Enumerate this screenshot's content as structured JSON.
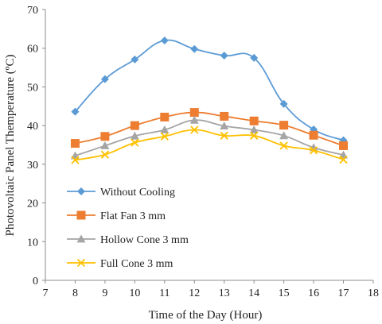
{
  "chart_data": {
    "type": "line",
    "xlabel": "Time of the Day (Hour)",
    "ylabel": "Photovoltaic Panel Themperature (ºC)",
    "xlim": [
      7,
      18
    ],
    "ylim": [
      0,
      70
    ],
    "xticks": [
      7,
      8,
      9,
      10,
      11,
      12,
      13,
      14,
      15,
      16,
      17,
      18
    ],
    "yticks": [
      0,
      10,
      20,
      30,
      40,
      50,
      60,
      70
    ],
    "grid": false,
    "legend_position": "lower-left",
    "x": [
      8,
      9,
      10,
      11,
      12,
      13,
      14,
      15,
      16,
      17
    ],
    "series": [
      {
        "name": "Without Cooling",
        "color": "#5b9bd5",
        "marker": "diamond",
        "smooth": true,
        "values": [
          43.6,
          52.0,
          57.1,
          62.0,
          59.8,
          58.1,
          57.5,
          45.6,
          39.0,
          36.2
        ]
      },
      {
        "name": "Flat Fan 3 mm",
        "color": "#ed7d31",
        "marker": "square",
        "smooth": true,
        "values": [
          35.4,
          37.2,
          40.0,
          42.2,
          43.4,
          42.4,
          41.2,
          40.1,
          37.5,
          34.8
        ]
      },
      {
        "name": "Hollow Cone 3 mm",
        "color": "#a5a5a5",
        "marker": "triangle",
        "smooth": true,
        "values": [
          32.2,
          34.8,
          37.3,
          38.9,
          41.4,
          39.9,
          38.9,
          37.4,
          34.3,
          32.4
        ]
      },
      {
        "name": "Full Cone 3 mm",
        "color": "#ffc000",
        "marker": "x",
        "smooth": true,
        "values": [
          31.1,
          32.5,
          35.6,
          37.2,
          38.9,
          37.4,
          37.4,
          34.8,
          33.6,
          31.2
        ]
      }
    ]
  }
}
